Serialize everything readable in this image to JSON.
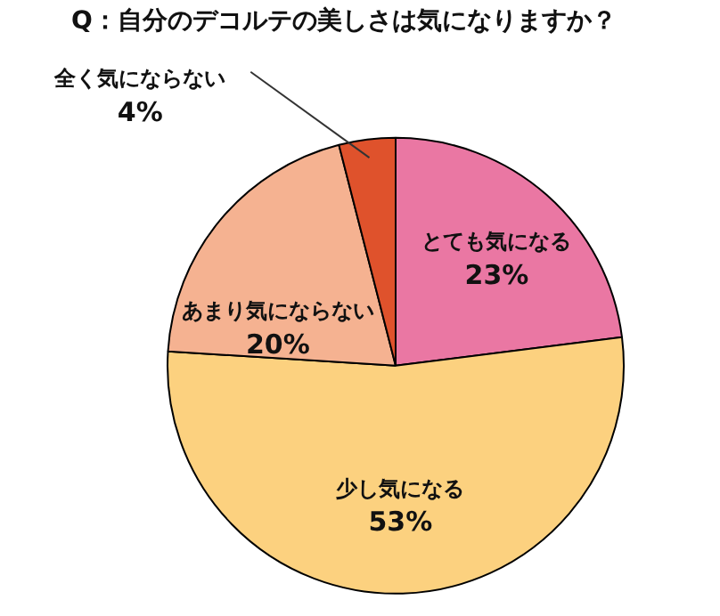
{
  "chart_data": {
    "type": "pie",
    "title": "Q：自分のデコルテの美しさは気になりますか？",
    "categories": [
      "とても気になる",
      "少し気になる",
      "あまり気にならない",
      "全く気にならない"
    ],
    "values": [
      23,
      53,
      20,
      4
    ],
    "value_labels": [
      "23%",
      "53%",
      "20%",
      "4%"
    ],
    "colors": [
      "#ea77a3",
      "#fcd17f",
      "#f5b291",
      "#df522c"
    ],
    "legend": false
  }
}
